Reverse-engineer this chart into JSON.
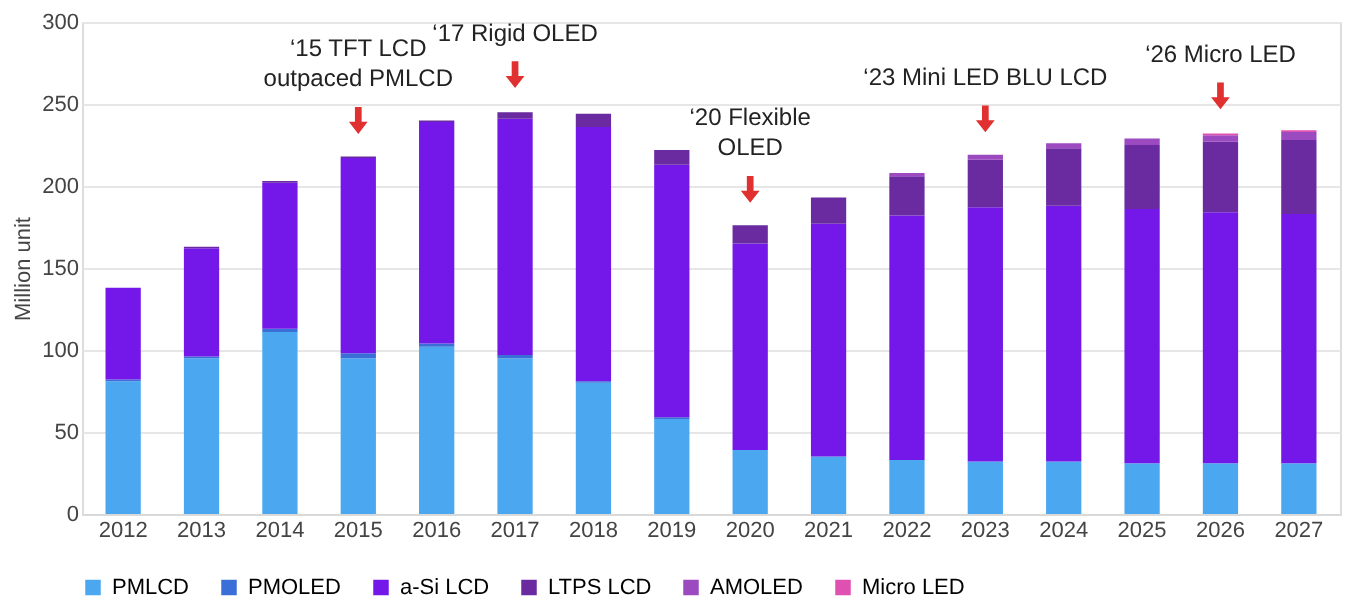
{
  "chart_data": {
    "type": "bar",
    "stacked": true,
    "ylabel": "Million unit",
    "categories": [
      "2012",
      "2013",
      "2014",
      "2015",
      "2016",
      "2017",
      "2018",
      "2019",
      "2020",
      "2021",
      "2022",
      "2023",
      "2024",
      "2025",
      "2026",
      "2027"
    ],
    "series": [
      {
        "name": "PMLCD",
        "color": "#4ba8f0",
        "values": [
          81,
          95,
          111,
          95,
          102,
          95,
          80,
          58,
          39,
          35,
          33,
          32,
          32,
          31,
          31,
          31
        ]
      },
      {
        "name": "PMOLED",
        "color": "#3a6fd8",
        "values": [
          1,
          1,
          2,
          3,
          2,
          2,
          1,
          1,
          0,
          0,
          0,
          0,
          0,
          0,
          0,
          0
        ]
      },
      {
        "name": "a-Si LCD",
        "color": "#7318e8",
        "values": [
          56,
          66,
          89,
          119,
          135,
          144,
          155,
          154,
          126,
          142,
          149,
          155,
          156,
          155,
          153,
          152
        ]
      },
      {
        "name": "LTPS LCD",
        "color": "#6a2aa0",
        "values": [
          0,
          1,
          1,
          1,
          1,
          4,
          8,
          9,
          11,
          16,
          24,
          29,
          35,
          39,
          43,
          45
        ]
      },
      {
        "name": "AMOLED",
        "color": "#9b4ac0",
        "values": [
          0,
          0,
          0,
          0,
          0,
          0,
          0,
          0,
          0,
          0,
          2,
          3,
          3,
          4,
          4,
          5
        ]
      },
      {
        "name": "Micro LED",
        "color": "#e050b0",
        "values": [
          0,
          0,
          0,
          0,
          0,
          0,
          0,
          0,
          0,
          0,
          0,
          0,
          0,
          0,
          1,
          1
        ]
      }
    ],
    "ylim": [
      0,
      300
    ],
    "yticks": [
      0,
      50,
      100,
      150,
      200,
      250,
      300
    ],
    "grid": "y",
    "legend": "bottom",
    "annotations": [
      {
        "text": "‘15 TFT LCD\noutpaced PMLCD",
        "x": "2015",
        "y": 218
      },
      {
        "text": "‘17 Rigid OLED",
        "x": "2017",
        "y": 246
      },
      {
        "text": "‘20 Flexible\nOLED",
        "x": "2020",
        "y": 176
      },
      {
        "text": "‘23 Mini LED BLU LCD",
        "x": "2023",
        "y": 219
      },
      {
        "text": "‘26 Micro LED",
        "x": "2026",
        "y": 233
      }
    ]
  }
}
